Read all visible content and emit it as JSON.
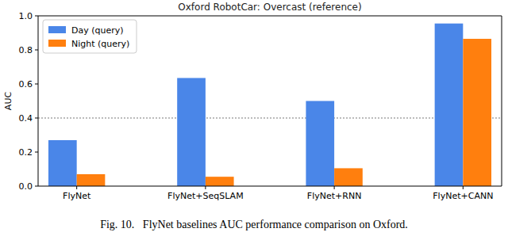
{
  "chart_data": {
    "type": "bar",
    "title": "Oxford RobotCar: Overcast (reference)",
    "y_label": "AUC",
    "caption": "Fig. 10.   FlyNet baselines AUC performance comparison on Oxford.",
    "categories": [
      "FlyNet",
      "FlyNet+SeqSLAM",
      "FlyNet+RNN",
      "FlyNet+CANN"
    ],
    "series": [
      {
        "name": "Day (query)",
        "color": "#4a86e8",
        "values": [
          0.27,
          0.635,
          0.5,
          0.955
        ]
      },
      {
        "name": "Night (query)",
        "color": "#ff7f0e",
        "values": [
          0.07,
          0.055,
          0.105,
          0.865
        ]
      }
    ],
    "ylim": [
      0,
      1.0
    ],
    "yticks": [
      {
        "value": 0,
        "label": "0.0"
      },
      {
        "value": 0.2,
        "label": "0.2"
      },
      {
        "value": 0.4,
        "label": "0.4"
      },
      {
        "value": 0.6,
        "label": "0.6"
      },
      {
        "value": 0.8,
        "label": "0.8"
      },
      {
        "value": 1.0,
        "label": "1.0"
      }
    ],
    "reference_line": 0.4,
    "legend": "upper left"
  }
}
